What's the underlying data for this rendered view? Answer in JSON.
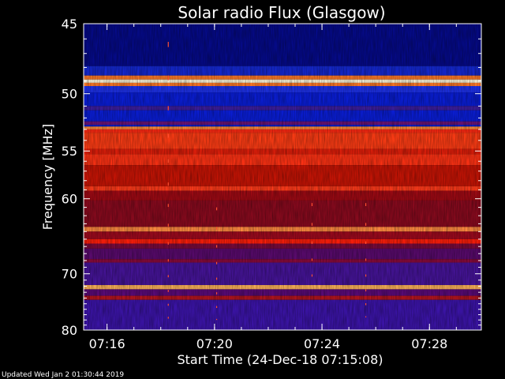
{
  "footer": {
    "updated": "Updated Wed Jan  2 01:30:44 2019"
  },
  "chart_data": {
    "type": "heatmap",
    "title": "Solar radio Flux (Glasgow)",
    "xlabel": "Start Time (24-Dec-18 07:15:08)",
    "ylabel": "Frequency [MHz]",
    "x_ticks": [
      "07:16",
      "07:20",
      "07:24",
      "07:28"
    ],
    "x_tick_minutes": [
      0.87,
      4.87,
      8.87,
      12.87
    ],
    "xlim_minutes": [
      0,
      14.8
    ],
    "y_ticks": [
      45,
      50,
      55,
      60,
      70,
      80
    ],
    "ylim": [
      45,
      80
    ],
    "y_scale": "reciprocal",
    "colors": {
      "low": "#1c00b4",
      "mid": "#a00000",
      "high": "#ff3c14",
      "peak": "#ffd890",
      "background": "#000000"
    },
    "frequency_bands": [
      {
        "from": 45.0,
        "to": 47.9,
        "color": "#050a8a"
      },
      {
        "from": 47.9,
        "to": 48.6,
        "color": "#1428d2"
      },
      {
        "from": 48.6,
        "to": 48.9,
        "color": "#ff7a28"
      },
      {
        "from": 48.9,
        "to": 49.15,
        "color": "#fff6d8"
      },
      {
        "from": 49.15,
        "to": 49.4,
        "color": "#ff7a28"
      },
      {
        "from": 49.4,
        "to": 49.9,
        "color": "#1e32ec"
      },
      {
        "from": 49.9,
        "to": 51.0,
        "color": "#0a1ed8"
      },
      {
        "from": 51.0,
        "to": 51.35,
        "color": "#3c1ea0"
      },
      {
        "from": 51.35,
        "to": 52.3,
        "color": "#0a1ed8"
      },
      {
        "from": 52.3,
        "to": 52.6,
        "color": "#6a1478"
      },
      {
        "from": 52.6,
        "to": 52.75,
        "color": "#0a1ed8"
      },
      {
        "from": 52.75,
        "to": 53.0,
        "color": "#ff8c3c"
      },
      {
        "from": 53.0,
        "to": 53.3,
        "color": "#ff2a12"
      },
      {
        "from": 53.3,
        "to": 54.8,
        "color": "#ff3c14"
      },
      {
        "from": 54.8,
        "to": 55.3,
        "color": "#e01e0a"
      },
      {
        "from": 55.3,
        "to": 56.4,
        "color": "#ff3214"
      },
      {
        "from": 56.4,
        "to": 58.6,
        "color": "#c81405"
      },
      {
        "from": 58.6,
        "to": 59.1,
        "color": "#ff3a1a"
      },
      {
        "from": 59.1,
        "to": 60.2,
        "color": "#a00a14"
      },
      {
        "from": 60.2,
        "to": 63.4,
        "color": "#8a0a1e"
      },
      {
        "from": 63.4,
        "to": 64.0,
        "color": "#ff8a40"
      },
      {
        "from": 64.0,
        "to": 65.0,
        "color": "#a00a1e"
      },
      {
        "from": 65.0,
        "to": 65.6,
        "color": "#ff1e0a"
      },
      {
        "from": 65.6,
        "to": 66.3,
        "color": "#7a0a3c"
      },
      {
        "from": 66.3,
        "to": 67.8,
        "color": "#5a0a6e"
      },
      {
        "from": 67.8,
        "to": 68.3,
        "color": "#8a0a3c"
      },
      {
        "from": 68.3,
        "to": 71.8,
        "color": "#46149a"
      },
      {
        "from": 71.8,
        "to": 72.5,
        "color": "#ffb45a"
      },
      {
        "from": 72.5,
        "to": 73.6,
        "color": "#5a0a78"
      },
      {
        "from": 73.6,
        "to": 74.3,
        "color": "#b4141e"
      },
      {
        "from": 74.3,
        "to": 80.0,
        "color": "#3c14aa"
      }
    ],
    "bursts": [
      {
        "minute": 3.15,
        "from": 46.2,
        "to": 79.5
      },
      {
        "minute": 4.95,
        "from": 61.0,
        "to": 78.0
      },
      {
        "minute": 8.5,
        "from": 60.5,
        "to": 72.0
      },
      {
        "minute": 10.5,
        "from": 60.5,
        "to": 77.5
      }
    ],
    "grid": false
  }
}
